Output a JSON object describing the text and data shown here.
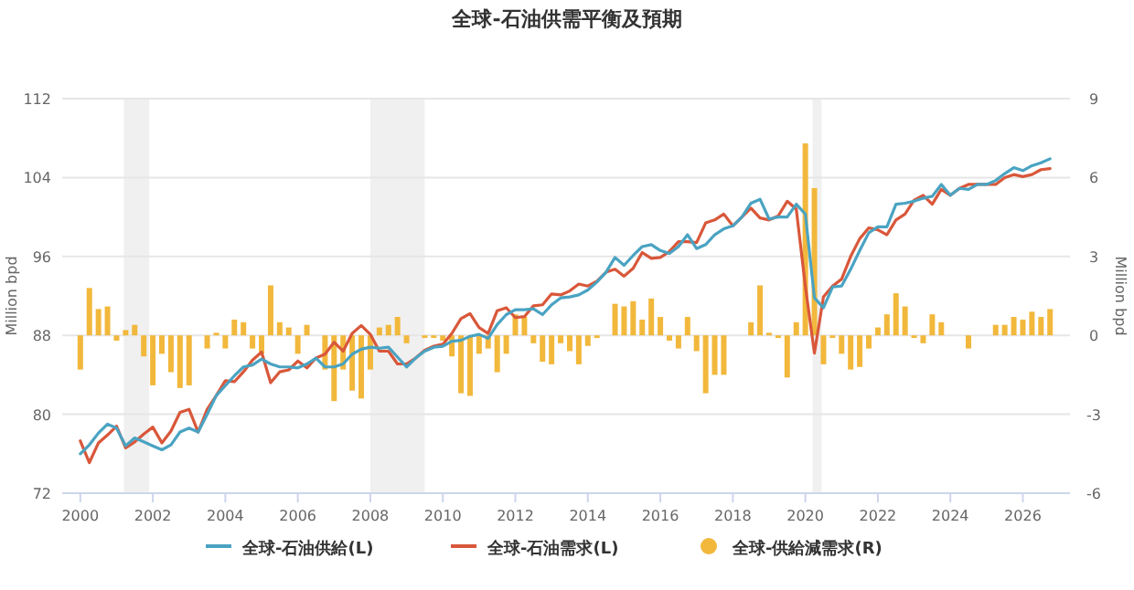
{
  "chart_data": {
    "type": "line",
    "title": "全球-石油供需平衡及預期",
    "ylabel": "Million bpd",
    "y2label": "Million bpd",
    "x": [
      2000,
      2000.25,
      2000.5,
      2000.75,
      2001,
      2001.25,
      2001.5,
      2001.75,
      2002,
      2002.25,
      2002.5,
      2002.75,
      2003,
      2003.25,
      2003.5,
      2003.75,
      2004,
      2004.25,
      2004.5,
      2004.75,
      2005,
      2005.25,
      2005.5,
      2005.75,
      2006,
      2006.25,
      2006.5,
      2006.75,
      2007,
      2007.25,
      2007.5,
      2007.75,
      2008,
      2008.25,
      2008.5,
      2008.75,
      2009,
      2009.25,
      2009.5,
      2009.75,
      2010,
      2010.25,
      2010.5,
      2010.75,
      2011,
      2011.25,
      2011.5,
      2011.75,
      2012,
      2012.25,
      2012.5,
      2012.75,
      2013,
      2013.25,
      2013.5,
      2013.75,
      2014,
      2014.25,
      2014.5,
      2014.75,
      2015,
      2015.25,
      2015.5,
      2015.75,
      2016,
      2016.25,
      2016.5,
      2016.75,
      2017,
      2017.25,
      2017.5,
      2017.75,
      2018,
      2018.25,
      2018.5,
      2018.75,
      2019,
      2019.25,
      2019.5,
      2019.75,
      2020,
      2020.25,
      2020.5,
      2020.75,
      2021,
      2021.25,
      2021.5,
      2021.75,
      2022,
      2022.25,
      2022.5,
      2022.75,
      2023,
      2023.25,
      2023.5,
      2023.75,
      2024,
      2024.25,
      2024.5,
      2024.75,
      2025,
      2025.25,
      2025.5,
      2025.75,
      2026,
      2026.25,
      2026.5,
      2026.75
    ],
    "xlim": [
      1999.5,
      2027.3
    ],
    "xticks": [
      2000,
      2002,
      2004,
      2006,
      2008,
      2010,
      2012,
      2014,
      2016,
      2018,
      2020,
      2022,
      2024,
      2026
    ],
    "ylim": [
      72,
      112
    ],
    "yticks": [
      72,
      80,
      88,
      96,
      104,
      112
    ],
    "y2lim": [
      -6,
      9
    ],
    "y2ticks": [
      -6,
      -3,
      0,
      3,
      6,
      9
    ],
    "grid": "y",
    "legend": "bottom",
    "bands": [
      {
        "axis": "x",
        "from": 2001.2,
        "to": 2001.9,
        "color": "#f0f0f0"
      },
      {
        "axis": "x",
        "from": 2008.0,
        "to": 2009.5,
        "color": "#f0f0f0"
      },
      {
        "axis": "x",
        "from": 2020.2,
        "to": 2020.45,
        "color": "#f0f0f0"
      }
    ],
    "series": [
      {
        "name": "全球-供給減需求(R)",
        "type": "bar",
        "axis": "y2",
        "color": "#f2b83c",
        "values": [
          -1.3,
          1.8,
          1.0,
          1.1,
          -0.2,
          0.2,
          0.4,
          -0.8,
          -1.9,
          -0.7,
          -1.4,
          -2.0,
          -1.9,
          0.0,
          -0.5,
          0.1,
          -0.5,
          0.6,
          0.5,
          -0.5,
          -0.7,
          1.9,
          0.5,
          0.3,
          -0.7,
          0.4,
          0.0,
          -1.3,
          -2.5,
          -1.3,
          -2.1,
          -2.4,
          -1.3,
          0.3,
          0.4,
          0.7,
          -0.3,
          0.0,
          -0.1,
          -0.1,
          -0.2,
          -0.8,
          -2.2,
          -2.3,
          -0.7,
          -0.5,
          -1.4,
          -0.7,
          0.8,
          0.7,
          -0.3,
          -1.0,
          -1.1,
          -0.3,
          -0.6,
          -1.1,
          -0.4,
          -0.1,
          0.0,
          1.2,
          1.1,
          1.3,
          0.6,
          1.4,
          0.7,
          -0.2,
          -0.5,
          0.7,
          -0.6,
          -2.2,
          -1.5,
          -1.5,
          0.0,
          0.0,
          0.5,
          1.9,
          0.1,
          -0.1,
          -1.6,
          0.5,
          7.3,
          5.6,
          -1.1,
          -0.1,
          -0.7,
          -1.3,
          -1.2,
          -0.5,
          0.3,
          0.8,
          1.6,
          1.1,
          -0.1,
          -0.3,
          0.8,
          0.5,
          0.0,
          0.0,
          -0.5,
          0.0,
          0.0,
          0.4,
          0.4,
          0.7,
          0.6,
          0.9,
          0.7,
          1.0
        ]
      },
      {
        "name": "全球-石油需求(L)",
        "color": "#d9573a",
        "values": [
          77.3,
          75.1,
          77.1,
          77.9,
          78.8,
          76.6,
          77.2,
          78.0,
          78.7,
          77.1,
          78.3,
          80.2,
          80.5,
          78.2,
          80.5,
          81.9,
          83.4,
          83.3,
          84.3,
          85.5,
          86.3,
          83.2,
          84.3,
          84.5,
          85.4,
          84.7,
          85.7,
          86.1,
          87.3,
          86.4,
          88.2,
          89.0,
          88.1,
          86.4,
          86.4,
          85.1,
          85.1,
          85.7,
          86.5,
          86.9,
          87.1,
          88.2,
          89.7,
          90.2,
          88.8,
          88.2,
          90.5,
          90.8,
          89.8,
          89.9,
          91.0,
          91.1,
          92.2,
          92.1,
          92.5,
          93.2,
          93.0,
          93.5,
          94.4,
          94.7,
          94.0,
          94.8,
          96.4,
          95.8,
          95.9,
          96.5,
          97.5,
          97.5,
          97.4,
          99.4,
          99.7,
          100.3,
          99.1,
          100.0,
          100.9,
          99.9,
          99.7,
          100.1,
          101.6,
          100.8,
          93.0,
          86.2,
          91.9,
          93.0,
          93.7,
          96.0,
          97.8,
          98.9,
          98.7,
          98.2,
          99.7,
          100.3,
          101.7,
          102.2,
          101.3,
          102.8,
          102.2,
          102.9,
          103.3,
          103.3,
          103.3,
          103.3,
          104.0,
          104.3,
          104.1,
          104.3,
          104.8,
          104.9
        ]
      },
      {
        "name": "全球-石油供給(L)",
        "color": "#4aa3c2",
        "values": [
          76.0,
          76.9,
          78.1,
          79.0,
          78.6,
          76.8,
          77.6,
          77.2,
          76.8,
          76.4,
          76.9,
          78.2,
          78.6,
          78.2,
          80.0,
          81.9,
          82.9,
          83.9,
          84.8,
          85.0,
          85.6,
          85.1,
          84.8,
          84.8,
          84.7,
          85.1,
          85.7,
          84.8,
          84.8,
          85.1,
          86.1,
          86.6,
          86.8,
          86.7,
          86.8,
          85.8,
          84.8,
          85.7,
          86.4,
          86.8,
          86.9,
          87.4,
          87.5,
          87.9,
          88.1,
          87.7,
          89.1,
          90.1,
          90.6,
          90.6,
          90.7,
          90.1,
          91.1,
          91.8,
          91.9,
          92.1,
          92.6,
          93.4,
          94.4,
          95.9,
          95.1,
          96.1,
          97.0,
          97.2,
          96.6,
          96.3,
          97.0,
          98.2,
          96.8,
          97.2,
          98.2,
          98.8,
          99.1,
          100.0,
          101.4,
          101.8,
          99.8,
          100.0,
          100.0,
          101.3,
          100.3,
          91.8,
          90.8,
          92.9,
          93.0,
          94.7,
          96.6,
          98.4,
          99.0,
          99.0,
          101.3,
          101.4,
          101.6,
          101.9,
          102.1,
          103.3,
          102.2,
          102.9,
          102.8,
          103.3,
          103.3,
          103.7,
          104.4,
          105.0,
          104.7,
          105.2,
          105.5,
          105.9
        ]
      }
    ]
  }
}
